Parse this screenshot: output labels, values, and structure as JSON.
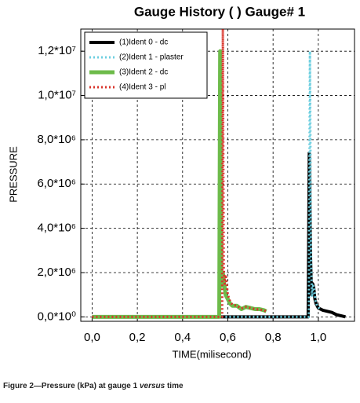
{
  "chart_data": {
    "type": "line",
    "title": "Gauge History ( ) Gauge#  1",
    "x_label": "TIME(milisecond)",
    "y_label": "PRESSURE",
    "xlim": [
      -0.05,
      1.16
    ],
    "ylim": [
      -200000,
      13000000
    ],
    "xticks": [
      {
        "value": 0,
        "label": "0,0"
      },
      {
        "value": 0.2,
        "label": "0,2"
      },
      {
        "value": 0.4,
        "label": "0,4"
      },
      {
        "value": 0.6,
        "label": "0,6"
      },
      {
        "value": 0.8,
        "label": "0,8"
      },
      {
        "value": 1.0,
        "label": "1,0"
      }
    ],
    "yticks": [
      {
        "value": 0,
        "label": "0,0*10⁰"
      },
      {
        "value": 2000000,
        "label": "2,0*10⁶"
      },
      {
        "value": 4000000,
        "label": "4,0*10⁶"
      },
      {
        "value": 6000000,
        "label": "6,0*10⁶"
      },
      {
        "value": 8000000,
        "label": "8,0*10⁶"
      },
      {
        "value": 10000000,
        "label": "1,0*10⁷"
      },
      {
        "value": 12000000,
        "label": "1,2*10⁷"
      }
    ],
    "grid": true,
    "legend": "upper left",
    "series": [
      {
        "name": "(1)Ident 0 - dc",
        "color": "#000000",
        "style": "solid",
        "width": 4,
        "x": [
          0,
          0.955,
          0.96,
          0.965,
          0.97,
          0.975,
          0.98,
          0.985,
          0.99,
          1.0,
          1.02,
          1.04,
          1.06,
          1.08,
          1.1,
          1.12
        ],
        "values": [
          0,
          0,
          7400000,
          3000000,
          1000000,
          1500000,
          1300000,
          800000,
          600000,
          400000,
          300000,
          250000,
          200000,
          100000,
          50000,
          0
        ]
      },
      {
        "name": "(2)Ident 1 - plaster",
        "color": "#6ecfe0",
        "style": "dotted",
        "width": 3,
        "x": [
          0,
          0.958,
          0.963,
          0.968,
          0.972,
          0.977,
          0.982,
          0.988,
          0.995,
          1.01
        ],
        "values": [
          0,
          0,
          12000000,
          2500000,
          900000,
          1400000,
          1200000,
          700000,
          500000,
          300000
        ]
      },
      {
        "name": "(3)Ident 2 - dc",
        "color": "#6dbb4a",
        "style": "solid",
        "width": 5,
        "x": [
          0,
          0.562,
          0.566,
          0.57,
          0.574,
          0.578,
          0.583,
          0.59,
          0.6,
          0.61,
          0.62,
          0.64,
          0.66,
          0.68,
          0.7,
          0.72,
          0.74,
          0.76,
          0.77
        ],
        "values": [
          0,
          0,
          12000000,
          2000000,
          1400000,
          2000000,
          1600000,
          1000000,
          800000,
          600000,
          500000,
          500000,
          350000,
          450000,
          400000,
          350000,
          350000,
          300000,
          250000
        ]
      },
      {
        "name": "(4)Ident 3 - pl",
        "color": "#d9342b",
        "style": "dotted",
        "width": 3,
        "x": [
          0,
          0.575,
          0.578,
          0.582,
          0.586,
          0.59,
          0.595,
          0.6,
          0.61,
          0.62,
          0.64,
          0.66,
          0.68,
          0.7,
          0.72,
          0.74,
          0.76,
          0.77
        ],
        "values": [
          0,
          0,
          13000000,
          2200000,
          1500000,
          1900000,
          1500000,
          1000000,
          700000,
          550000,
          500000,
          380000,
          450000,
          400000,
          350000,
          330000,
          300000,
          250000
        ]
      }
    ]
  },
  "caption": {
    "before": "Figure 2—Pressure (kPa) at gauge 1 ",
    "italic": "versus",
    "after": " time"
  }
}
